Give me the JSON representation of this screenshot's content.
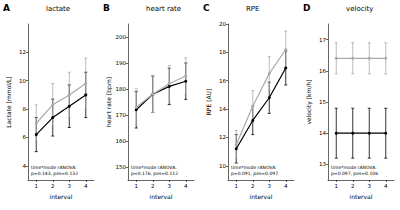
{
  "chart_data": [
    {
      "type": "line",
      "panel": "A",
      "title": "lactate",
      "x_label": "interval",
      "y_label": "Lactate [mmol/L]",
      "x": [
        1,
        2,
        3,
        4
      ],
      "xlim": [
        0.5,
        4.5
      ],
      "xticks": [
        1,
        2,
        3,
        4
      ],
      "ylim": [
        3,
        14
      ],
      "yticks": [
        4,
        6,
        8,
        10,
        12
      ],
      "grid": false,
      "marker": "circle",
      "annotations": [
        "time*mode rANOVA:",
        "p=0.143, pes=0.132"
      ],
      "series": [
        {
          "color": "#000000",
          "values": [
            6.2,
            7.4,
            8.2,
            9.0
          ],
          "errors": [
            1.2,
            1.3,
            1.5,
            1.6
          ]
        },
        {
          "color": "#aaaaaa",
          "values": [
            7.0,
            8.3,
            9.0,
            9.8
          ],
          "errors": [
            1.3,
            1.5,
            1.6,
            1.8
          ]
        }
      ]
    },
    {
      "type": "line",
      "panel": "B",
      "title": "heart rate",
      "x_label": "interval",
      "y_label": "heart rate [bpm]",
      "x": [
        1,
        2,
        3,
        4
      ],
      "xlim": [
        0.5,
        4.5
      ],
      "xticks": [
        1,
        2,
        3,
        4
      ],
      "ylim": [
        145,
        205
      ],
      "yticks": [
        150,
        160,
        170,
        180,
        190,
        200
      ],
      "grid": false,
      "marker": "circle",
      "annotations": [
        "time*mode rANOVA:",
        "p=0.176, pes=0.112"
      ],
      "series": [
        {
          "color": "#000000",
          "values": [
            172,
            178,
            181,
            183
          ],
          "errors": [
            7,
            7,
            7,
            7
          ]
        },
        {
          "color": "#aaaaaa",
          "values": [
            173,
            178,
            182,
            185
          ],
          "errors": [
            7,
            7,
            7,
            7
          ]
        }
      ]
    },
    {
      "type": "line",
      "panel": "C",
      "title": "RPE",
      "x_label": "interval",
      "y_label": "RPE [AU]",
      "x": [
        1,
        2,
        3,
        4
      ],
      "xlim": [
        0.5,
        4.5
      ],
      "xticks": [
        1,
        2,
        3,
        4
      ],
      "ylim": [
        9,
        20
      ],
      "yticks": [
        10,
        12,
        14,
        16,
        18,
        20
      ],
      "grid": false,
      "marker": "circle",
      "annotations": [
        "time*mode rANOVA:",
        "p=0.091, pes=0.097"
      ],
      "series": [
        {
          "color": "#000000",
          "values": [
            11.2,
            13.2,
            14.8,
            16.9
          ],
          "errors": [
            1.0,
            1.0,
            1.1,
            1.2
          ]
        },
        {
          "color": "#aaaaaa",
          "values": [
            11.5,
            14.2,
            16.5,
            18.2
          ],
          "errors": [
            1.0,
            1.1,
            1.2,
            1.3
          ]
        }
      ]
    },
    {
      "type": "line",
      "panel": "D",
      "title": "velocity",
      "x_label": "interval",
      "y_label": "velocity [km/h]",
      "x": [
        1,
        2,
        3,
        4
      ],
      "xlim": [
        0.5,
        4.5
      ],
      "xticks": [
        1,
        2,
        3,
        4
      ],
      "ylim": [
        12.5,
        17.5
      ],
      "yticks": [
        13,
        14,
        15,
        16,
        17
      ],
      "grid": false,
      "marker": "circle",
      "annotations": [
        "time*mode rANOVA:",
        "p=0.097, pes=0.106"
      ],
      "series": [
        {
          "color": "#000000",
          "values": [
            14.0,
            14.0,
            14.0,
            14.0
          ],
          "errors": [
            0.8,
            0.8,
            0.8,
            0.8
          ]
        },
        {
          "color": "#aaaaaa",
          "values": [
            16.4,
            16.4,
            16.4,
            16.4
          ],
          "errors": [
            0.5,
            0.5,
            0.5,
            0.5
          ]
        }
      ]
    }
  ]
}
